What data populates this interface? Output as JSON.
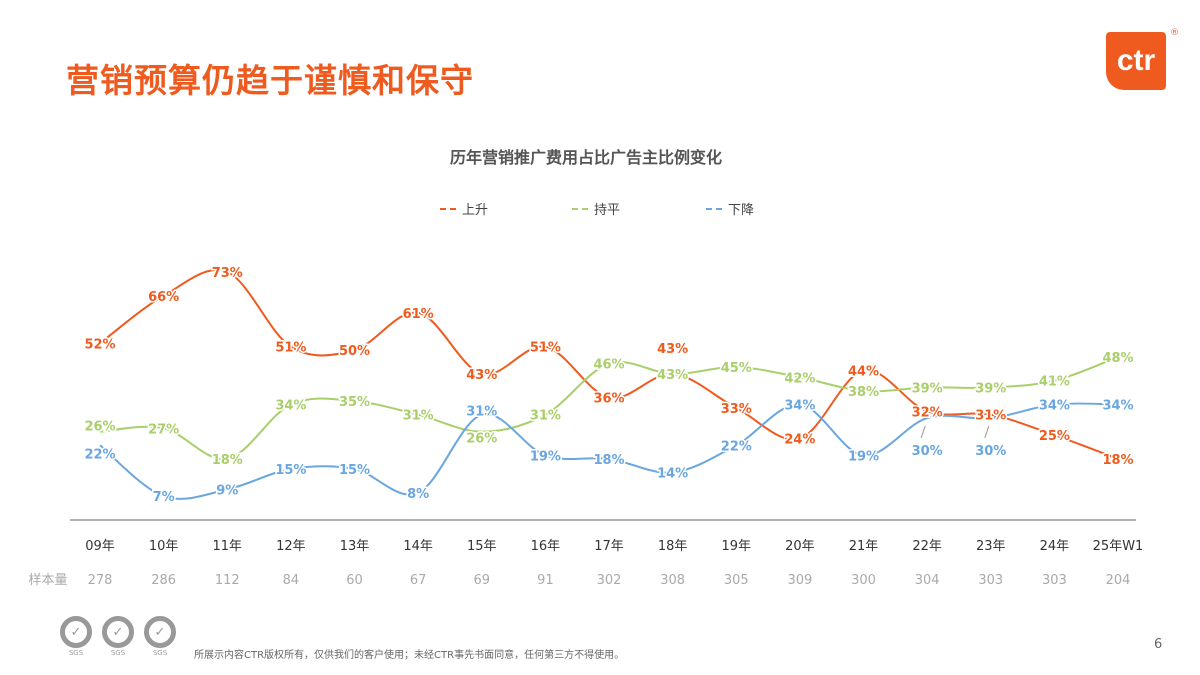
{
  "header": {
    "title": "营销预算仍趋于谨慎和保守",
    "logo_text": "ctr",
    "logo_mark": "®"
  },
  "chart_data": {
    "type": "line",
    "title": "历年营销推广费用占比广告主比例变化",
    "categories": [
      "09年",
      "10年",
      "11年",
      "12年",
      "13年",
      "14年",
      "15年",
      "16年",
      "17年",
      "18年",
      "19年",
      "20年",
      "21年",
      "22年",
      "23年",
      "24年",
      "25年W1"
    ],
    "series": [
      {
        "name": "上升",
        "color": "#ef5b1f",
        "values": [
          52,
          66,
          73,
          51,
          50,
          61,
          43,
          51,
          36,
          43,
          33,
          24,
          44,
          32,
          31,
          25,
          18
        ]
      },
      {
        "name": "持平",
        "color": "#a9cf6a",
        "values": [
          26,
          27,
          18,
          34,
          35,
          31,
          26,
          31,
          46,
          43,
          45,
          42,
          38,
          39,
          39,
          41,
          48
        ]
      },
      {
        "name": "下降",
        "color": "#6aa6e0",
        "values": [
          22,
          7,
          9,
          15,
          15,
          8,
          31,
          19,
          18,
          14,
          22,
          34,
          19,
          30,
          30,
          34,
          34
        ]
      }
    ],
    "value_suffix": "%",
    "ylim": [
      0,
      80
    ],
    "grid": false,
    "legend": "top-center",
    "sample_label": "样本量",
    "sample_sizes": [
      "278",
      "286",
      "112",
      "84",
      "60",
      "67",
      "69",
      "91",
      "302",
      "308",
      "305",
      "309",
      "300",
      "304",
      "303",
      "303",
      "204"
    ]
  },
  "footer": {
    "text": "所展示内容CTR版权所有，仅供我们的客户使用；未经CTR事先书面同意，任何第三方不得使用。",
    "page": "6",
    "badge_label": "SGS"
  }
}
